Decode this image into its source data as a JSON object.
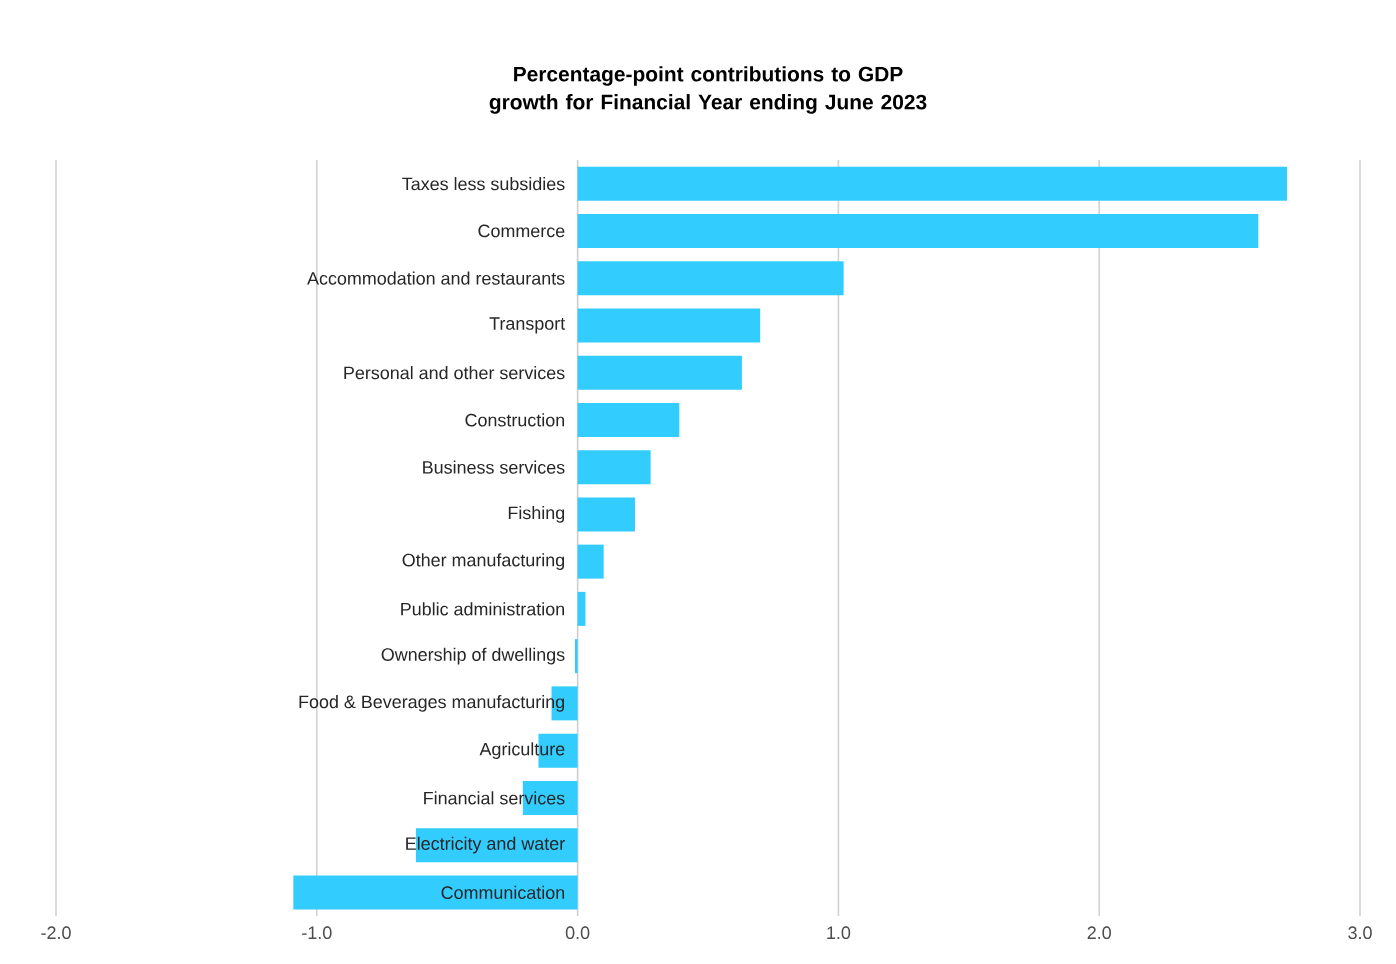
{
  "chart_data": {
    "type": "bar",
    "orientation": "horizontal",
    "title": "Percentage-point contributions to GDP growth for Financial Year ending June 2023",
    "categories": [
      "Taxes less subsidies",
      "Commerce",
      "Accommodation and restaurants",
      "Transport",
      "Personal and other services",
      "Construction",
      "Business services",
      "Fishing",
      "Other manufacturing",
      "Public administration",
      "Ownership of dwellings",
      "Food & Beverages manufacturing",
      "Agriculture",
      "Financial services",
      "Electricity and water",
      "Communication"
    ],
    "values": [
      2.72,
      2.61,
      1.02,
      0.7,
      0.63,
      0.39,
      0.28,
      0.22,
      0.1,
      0.03,
      -0.01,
      -0.1,
      -0.15,
      -0.21,
      -0.62,
      -1.09
    ],
    "color": "#33ccff",
    "xlim": [
      -2,
      3
    ],
    "xticks": [
      {
        "value": -2,
        "label": "-2.0"
      },
      {
        "value": -1,
        "label": "-1.0"
      },
      {
        "value": 0,
        "label": "0.0"
      },
      {
        "value": 1,
        "label": "1.0"
      },
      {
        "value": 2,
        "label": "2.0"
      },
      {
        "value": 3,
        "label": "3.0"
      }
    ],
    "grid": "x"
  }
}
